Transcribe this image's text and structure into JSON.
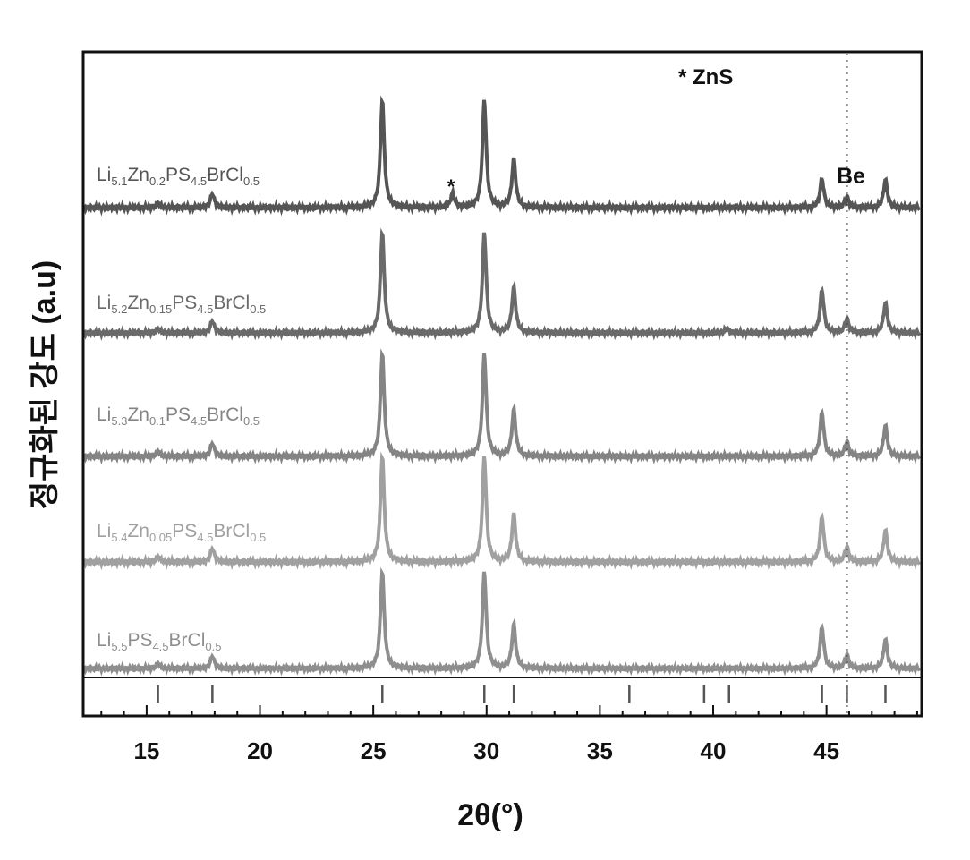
{
  "chart_data": {
    "type": "line",
    "xlabel": "2θ(°)",
    "ylabel": "정규화된 강도 (a.u)",
    "xlim": [
      12.2,
      49.2
    ],
    "xticks": [
      15,
      20,
      25,
      30,
      35,
      40,
      45
    ],
    "yticks": [],
    "colors": [
      "#555555",
      "#6a6a6a",
      "#848484",
      "#a0a0a0",
      "#8e8e8e"
    ],
    "series": [
      {
        "name": "Li5.1Zn0.2PS4.5BrCl0.5",
        "name_parts": [
          [
            "Li",
            ""
          ],
          [
            "5.1",
            "sub"
          ],
          [
            "Zn",
            ""
          ],
          [
            "0.2",
            "sub"
          ],
          [
            "PS",
            ""
          ],
          [
            "4.5",
            "sub"
          ],
          [
            "BrCl",
            ""
          ],
          [
            "0.5",
            "sub"
          ]
        ],
        "peaks": [
          [
            15.5,
            0.04
          ],
          [
            17.9,
            0.13
          ],
          [
            25.4,
            1.0
          ],
          [
            28.5,
            0.13
          ],
          [
            29.9,
            1.0
          ],
          [
            31.2,
            0.45
          ],
          [
            44.8,
            0.27
          ],
          [
            45.9,
            0.1
          ],
          [
            47.6,
            0.26
          ]
        ]
      },
      {
        "name": "Li5.2Zn0.15PS4.5BrCl0.5",
        "name_parts": [
          [
            "Li",
            ""
          ],
          [
            "5.2",
            "sub"
          ],
          [
            "Zn",
            ""
          ],
          [
            "0.15",
            "sub"
          ],
          [
            "PS",
            ""
          ],
          [
            "4.5",
            "sub"
          ],
          [
            "BrCl",
            ""
          ],
          [
            "0.5",
            "sub"
          ]
        ],
        "peaks": [
          [
            15.5,
            0.04
          ],
          [
            17.9,
            0.12
          ],
          [
            25.4,
            1.0
          ],
          [
            29.9,
            1.0
          ],
          [
            31.2,
            0.45
          ],
          [
            40.6,
            0.04
          ],
          [
            44.8,
            0.43
          ],
          [
            45.9,
            0.14
          ],
          [
            47.6,
            0.3
          ]
        ]
      },
      {
        "name": "Li5.3Zn0.1PS4.5BrCl0.5",
        "name_parts": [
          [
            "Li",
            ""
          ],
          [
            "5.3",
            "sub"
          ],
          [
            "Zn",
            ""
          ],
          [
            "0.1",
            "sub"
          ],
          [
            "PS",
            ""
          ],
          [
            "4.5",
            "sub"
          ],
          [
            "BrCl",
            ""
          ],
          [
            "0.5",
            "sub"
          ]
        ],
        "peaks": [
          [
            15.5,
            0.05
          ],
          [
            17.9,
            0.13
          ],
          [
            25.4,
            1.0
          ],
          [
            29.9,
            1.0
          ],
          [
            31.2,
            0.45
          ],
          [
            44.8,
            0.43
          ],
          [
            45.9,
            0.14
          ],
          [
            47.6,
            0.3
          ]
        ]
      },
      {
        "name": "Li5.4Zn0.05PS4.5BrCl0.5",
        "name_parts": [
          [
            "Li",
            ""
          ],
          [
            "5.4",
            "sub"
          ],
          [
            "Zn",
            ""
          ],
          [
            "0.05",
            "sub"
          ],
          [
            "PS",
            ""
          ],
          [
            "4.5",
            "sub"
          ],
          [
            "BrCl",
            ""
          ],
          [
            "0.5",
            "sub"
          ]
        ],
        "peaks": [
          [
            15.5,
            0.05
          ],
          [
            17.9,
            0.13
          ],
          [
            25.4,
            1.0
          ],
          [
            29.9,
            1.0
          ],
          [
            31.2,
            0.45
          ],
          [
            44.8,
            0.43
          ],
          [
            45.9,
            0.14
          ],
          [
            47.6,
            0.3
          ]
        ]
      },
      {
        "name": "Li5.5PS4.5BrCl0.5",
        "name_parts": [
          [
            "Li",
            ""
          ],
          [
            "5.5",
            "sub"
          ],
          [
            "PS",
            ""
          ],
          [
            "4.5",
            "sub"
          ],
          [
            "BrCl",
            ""
          ],
          [
            "0.5",
            "sub"
          ]
        ],
        "peaks": [
          [
            15.5,
            0.05
          ],
          [
            17.9,
            0.13
          ],
          [
            25.4,
            1.0
          ],
          [
            29.9,
            1.0
          ],
          [
            31.2,
            0.45
          ],
          [
            44.8,
            0.43
          ],
          [
            45.9,
            0.14
          ],
          [
            47.6,
            0.3
          ]
        ]
      }
    ],
    "reference_ticks": [
      15.5,
      17.9,
      25.4,
      29.9,
      31.2,
      36.3,
      39.6,
      40.7,
      44.8,
      45.9,
      47.6
    ],
    "annotations": {
      "zns_star_label": "* ZnS",
      "zns_peak_marker": "*",
      "zns_peak_x": 28.5,
      "be_label": "Be",
      "be_line_x": 45.9
    }
  }
}
